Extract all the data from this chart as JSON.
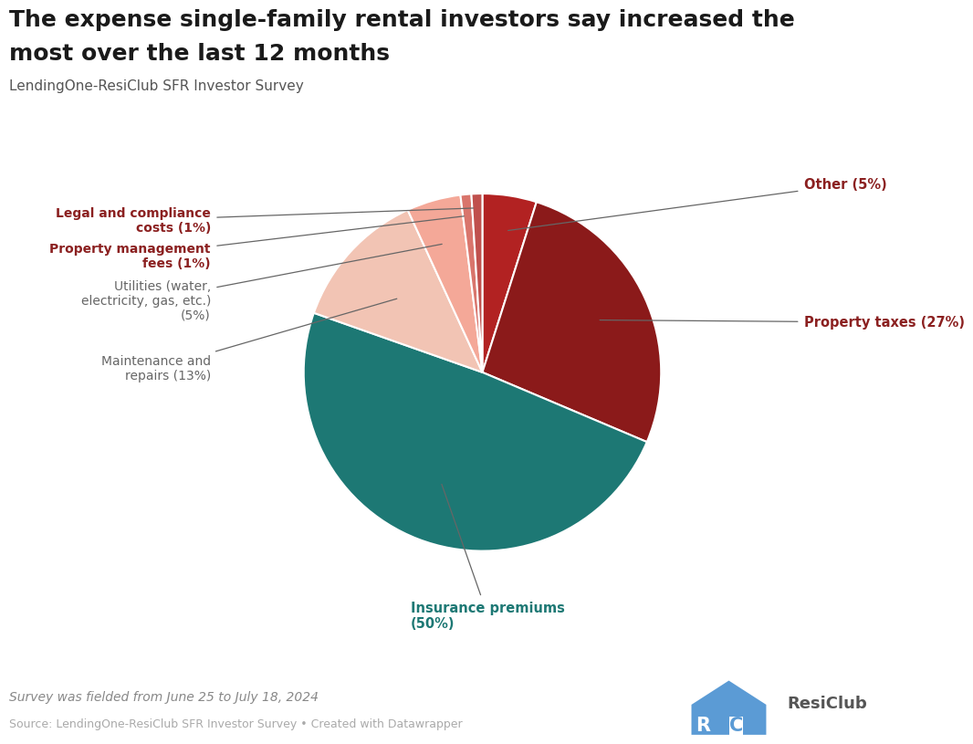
{
  "title_line1": "The expense single-family rental investors say increased the",
  "title_line2": "most over the last 12 months",
  "subtitle": "LendingOne-ResiClub SFR Investor Survey",
  "footnote": "Survey was fielded from June 25 to July 18, 2024",
  "source": "Source: LendingOne-ResiClub SFR Investor Survey • Created with Datawrapper",
  "background_color": "#ffffff",
  "title_color": "#1a1a1a",
  "subtitle_color": "#555555",
  "ordered_sizes": [
    5,
    27,
    50,
    13,
    5,
    1,
    1
  ],
  "ordered_colors": [
    "#b22222",
    "#8b1a1a",
    "#1d7874",
    "#f2c4b4",
    "#f4a898",
    "#d9756c",
    "#c0504d"
  ],
  "ordered_labels": [
    "Other",
    "Property taxes",
    "Insurance premiums",
    "Maintenance and\nrepairs",
    "Utilities (water,\nelectricity, gas, etc.)",
    "Property management\nfees",
    "Legal and compliance\ncosts"
  ],
  "label_display": [
    {
      "text": "Other (5%)",
      "color": "#8b2020",
      "ha": "left",
      "bold_part": "Other"
    },
    {
      "text": "Property taxes (27%)",
      "color": "#8b2020",
      "ha": "left",
      "bold_part": "Property taxes"
    },
    {
      "text": "Insurance premiums\n(50%)",
      "color": "#1d7874",
      "ha": "left",
      "bold_part": "Insurance premiums"
    },
    {
      "text": "Maintenance and\nrepairs (13%)",
      "color": "#666666",
      "ha": "right",
      "bold_part": ""
    },
    {
      "text": "Utilities (water,\nelectricity, gas, etc.)\n(5%)",
      "color": "#666666",
      "ha": "right",
      "bold_part": ""
    },
    {
      "text": "Property management\nfees (1%)",
      "color": "#8b2020",
      "ha": "right",
      "bold_part": "Property management\nfees"
    },
    {
      "text": "Legal and compliance\ncosts (1%)",
      "color": "#8b2020",
      "ha": "right",
      "bold_part": "Legal and compliance\ncosts"
    }
  ]
}
